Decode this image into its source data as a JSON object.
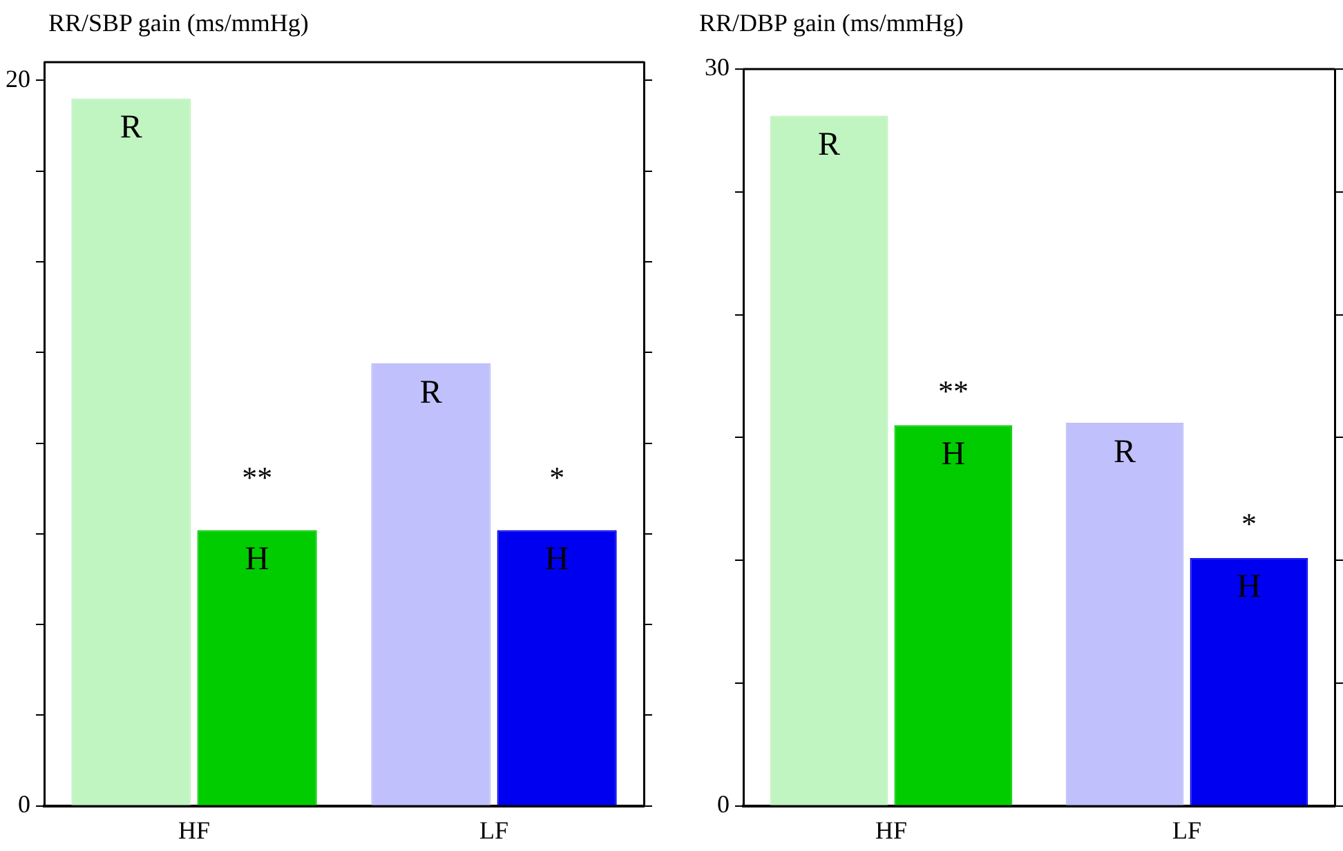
{
  "chart_data": [
    {
      "type": "bar",
      "title": "RR/SBP gain (ms/mmHg)",
      "categories": [
        "HF",
        "LF"
      ],
      "series": [
        {
          "name": "R",
          "colors": [
            "#c0f4c0",
            "#c0c0fc"
          ],
          "values": [
            19.5,
            12.2
          ]
        },
        {
          "name": "H",
          "colors": [
            "#00cc00",
            "#0000f0"
          ],
          "values": [
            7.6,
            7.6
          ]
        }
      ],
      "ylim": [
        0,
        20.5
      ],
      "yticks": [
        0,
        {
          "value": 2.5,
          "label": null
        },
        {
          "value": 5,
          "label": null
        },
        {
          "value": 7.5,
          "label": null
        },
        {
          "value": 10,
          "label": null
        },
        {
          "value": 12.5,
          "label": null
        },
        {
          "value": 15,
          "label": null
        },
        {
          "value": 17.5,
          "label": null
        },
        20
      ],
      "grid": false,
      "legend": false,
      "annotations": [
        {
          "text": "**",
          "x": "HF",
          "y": 9
        },
        {
          "text": "*",
          "x": "LF",
          "y": 9
        }
      ]
    },
    {
      "type": "bar",
      "title": "RR/DBP gain (ms/mmHg)",
      "categories": [
        "HF",
        "LF"
      ],
      "series": [
        {
          "name": "R",
          "colors": [
            "#c0f4c0",
            "#c0c0fc"
          ],
          "values": [
            28.1,
            15.6
          ]
        },
        {
          "name": "H",
          "colors": [
            "#00cc00",
            "#0000f0"
          ],
          "values": [
            15.5,
            10.1
          ]
        }
      ],
      "ylim": [
        0,
        30
      ],
      "yticks": [
        0,
        {
          "value": 5,
          "label": null
        },
        {
          "value": 10,
          "label": null
        },
        {
          "value": 15,
          "label": null
        },
        {
          "value": 20,
          "label": null
        },
        {
          "value": 25,
          "label": null
        },
        30
      ],
      "grid": false,
      "legend": false,
      "annotations": [
        {
          "text": "**",
          "x": "HF",
          "y": 16.8
        },
        {
          "text": "*",
          "x": "LF",
          "y": 11.4
        }
      ]
    }
  ]
}
